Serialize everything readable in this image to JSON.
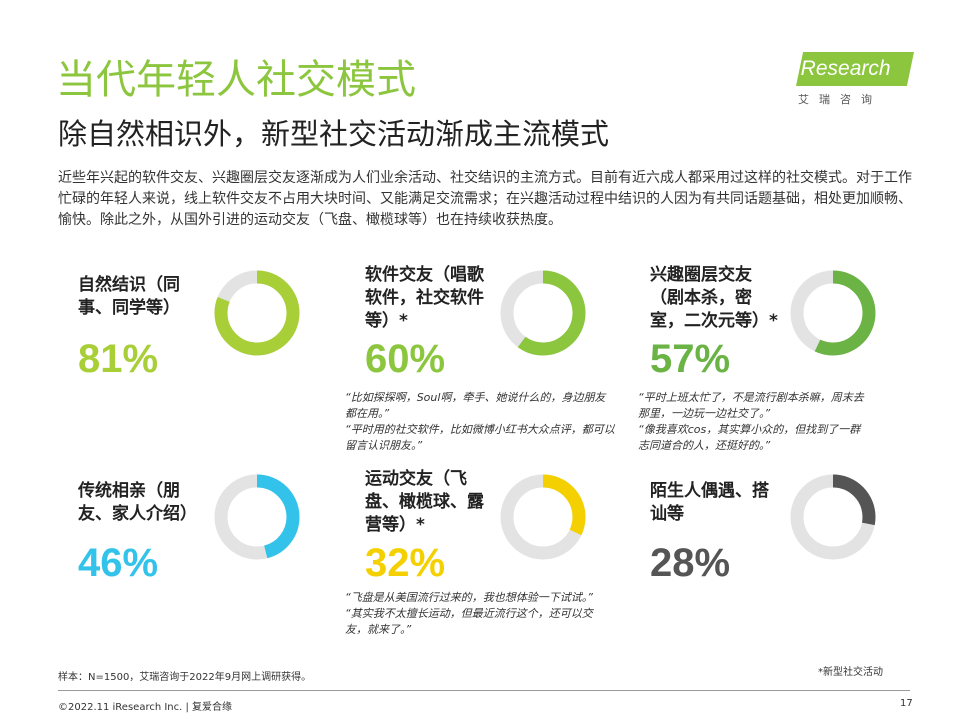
{
  "header": {
    "title": "当代年轻人社交模式",
    "subtitle": "除自然相识外，新型社交活动渐成主流模式",
    "intro": "近些年兴起的软件交友、兴趣圈层交友逐渐成为人们业余活动、社交结识的主流方式。目前有近六成人都采用过这样的社交模式。对于工作忙碌的年轻人来说，线上软件交友不占用大块时间、又能满足交流需求；在兴趣活动过程中结识的人因为有共同话题基础，相处更加顺畅、愉快。除此之外，从国外引进的运动交友（飞盘、橄榄球等）也在持续收获热度。"
  },
  "logo": {
    "text": "iResearch",
    "sub": "艾瑞咨询"
  },
  "colors": {
    "accent": "#8cc63e",
    "track": "#e3e3e3"
  },
  "cards": [
    {
      "label": "自然结识（同事、同学等）",
      "pct_text": "81%",
      "value": 81,
      "color": "#a9cf38"
    },
    {
      "label": "软件交友（唱歌软件，社交软件等）*",
      "pct_text": "60%",
      "value": 60,
      "color": "#8cc63e"
    },
    {
      "label": "兴趣圈层交友（剧本杀，密室，二次元等）*",
      "pct_text": "57%",
      "value": 57,
      "color": "#6ab344"
    },
    {
      "label": "传统相亲（朋友、家人介绍）",
      "pct_text": "46%",
      "value": 46,
      "color": "#33c3ea"
    },
    {
      "label": "运动交友（飞盘、橄榄球、露营等）*",
      "pct_text": "32%",
      "value": 32,
      "color": "#f4d000"
    },
    {
      "label": "陌生人偶遇、搭讪等",
      "pct_text": "28%",
      "value": 28,
      "color": "#555555"
    }
  ],
  "quotes": {
    "software": "“比如探探啊，Soul啊，牵手、她说什么的，身边朋友都在用。”\n“平时用的社交软件，比如微博小红书大众点评，都可以留言认识朋友。”",
    "interest": "“平时上班太忙了，不是流行剧本杀嘛，周末去那里，一边玩一边社交了。”\n“像我喜欢cos，其实算小众的，但找到了一群志同道合的人，还挺好的。”",
    "sports": "“飞盘是从美国流行过来的，我也想体验一下试试。”\n“其实我不太擅长运动，但最近流行这个，还可以交友，就来了。”"
  },
  "footer": {
    "sample": "样本：N=1500，艾瑞咨询于2022年9月网上调研获得。",
    "footnote": "*新型社交活动",
    "copyright": "©2022.11 iResearch Inc. | 复爱合缘",
    "page": "17"
  }
}
